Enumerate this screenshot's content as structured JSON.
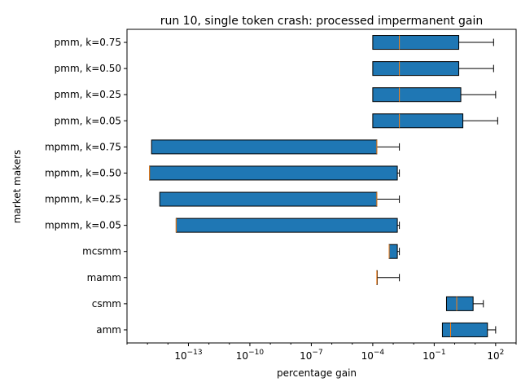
{
  "chart_data": {
    "type": "boxplot-horizontal",
    "title": "run 10, single token crash: processed impermanent gain",
    "xlabel": "percentage gain",
    "ylabel": "market makers",
    "xscale": "log",
    "xlim_exp": [
      -16,
      3
    ],
    "xticks": [
      {
        "exp": -13,
        "base": "10",
        "sup": "−13"
      },
      {
        "exp": -10,
        "base": "10",
        "sup": "−10"
      },
      {
        "exp": -7,
        "base": "10",
        "sup": "−7"
      },
      {
        "exp": -4,
        "base": "10",
        "sup": "−4"
      },
      {
        "exp": -1,
        "base": "10",
        "sup": "−1"
      },
      {
        "exp": 2,
        "base": "10",
        "sup": "2"
      }
    ],
    "grid": false,
    "box_color": "#1f77b4",
    "median_color": "#ff7f0e",
    "categories": [
      "pmm, k=0.75",
      "pmm, k=0.50",
      "pmm, k=0.25",
      "pmm, k=0.05",
      "mpmm, k=0.75",
      "mpmm, k=0.50",
      "mpmm, k=0.25",
      "mpmm, k=0.05",
      "mcsmm",
      "mamm",
      "csmm",
      "amm"
    ],
    "boxes_log10": [
      {
        "name": "pmm, k=0.75",
        "whislo": -4.0,
        "q1": -4.0,
        "med": -2.7,
        "q3": 0.2,
        "whishi": 1.9
      },
      {
        "name": "pmm, k=0.50",
        "whislo": -4.0,
        "q1": -4.0,
        "med": -2.7,
        "q3": 0.2,
        "whishi": 1.9
      },
      {
        "name": "pmm, k=0.25",
        "whislo": -4.0,
        "q1": -4.0,
        "med": -2.7,
        "q3": 0.3,
        "whishi": 2.0
      },
      {
        "name": "pmm, k=0.05",
        "whislo": -4.0,
        "q1": -4.0,
        "med": -2.7,
        "q3": 0.4,
        "whishi": 2.1
      },
      {
        "name": "mpmm, k=0.75",
        "whislo": -14.8,
        "q1": -14.8,
        "med": -3.8,
        "q3": -3.8,
        "whishi": -2.7
      },
      {
        "name": "mpmm, k=0.50",
        "whislo": -14.9,
        "q1": -14.9,
        "med": -14.9,
        "q3": -2.8,
        "whishi": -2.7
      },
      {
        "name": "mpmm, k=0.25",
        "whislo": -14.4,
        "q1": -14.4,
        "med": -3.8,
        "q3": -3.8,
        "whishi": -2.7
      },
      {
        "name": "mpmm, k=0.05",
        "whislo": -13.6,
        "q1": -13.6,
        "med": -13.6,
        "q3": -2.8,
        "whishi": -2.7
      },
      {
        "name": "mcsmm",
        "whislo": -3.2,
        "q1": -3.2,
        "med": -3.2,
        "q3": -2.8,
        "whishi": -2.7
      },
      {
        "name": "mamm",
        "whislo": -3.8,
        "q1": -3.8,
        "med": -3.8,
        "q3": -3.8,
        "whishi": -2.7
      },
      {
        "name": "csmm",
        "whislo": -0.4,
        "q1": -0.4,
        "med": 0.1,
        "q3": 0.9,
        "whishi": 1.4
      },
      {
        "name": "amm",
        "whislo": -0.6,
        "q1": -0.6,
        "med": -0.2,
        "q3": 1.6,
        "whishi": 2.0
      }
    ]
  }
}
